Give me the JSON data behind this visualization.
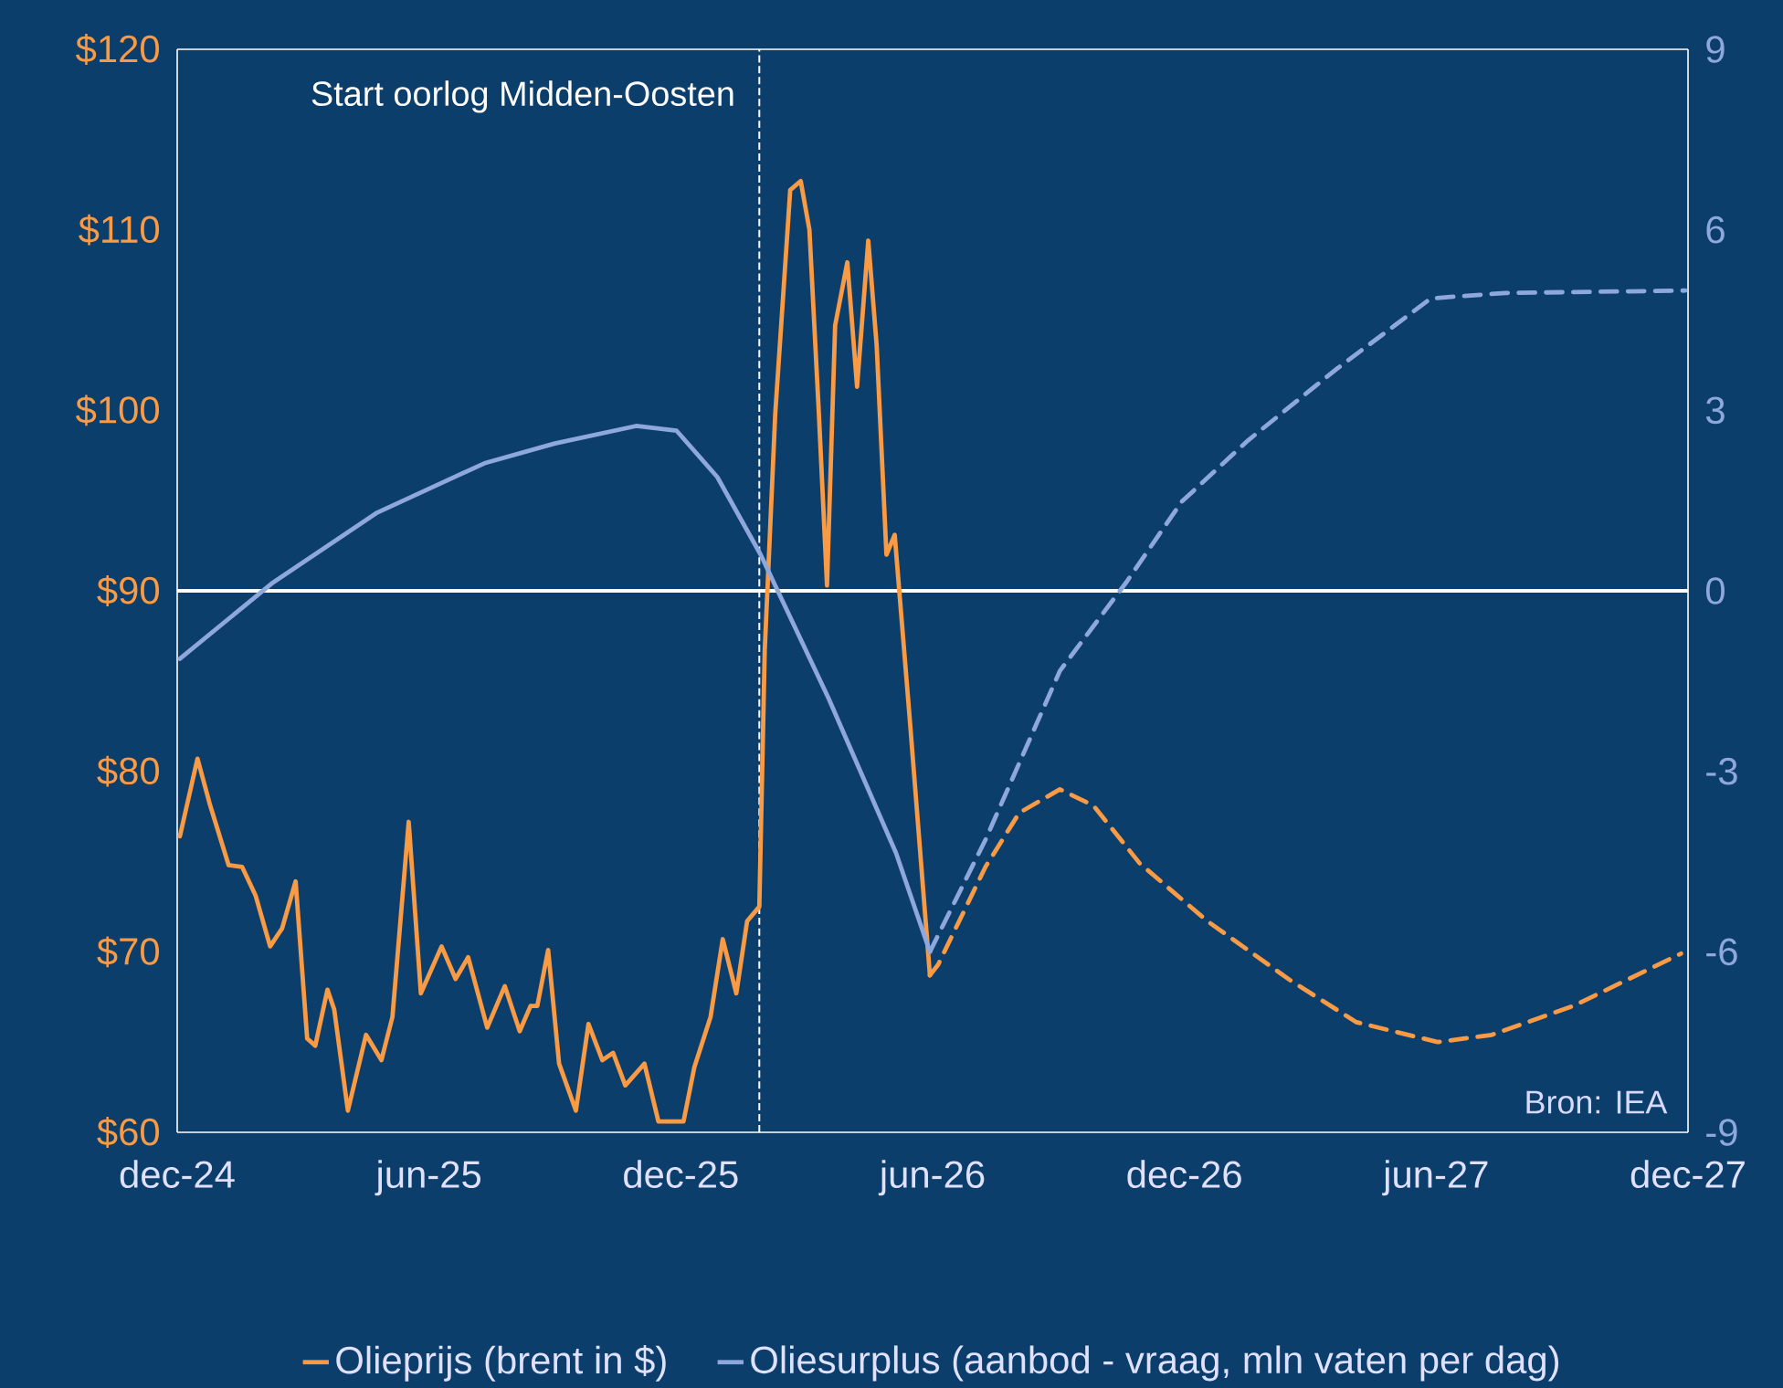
{
  "chart_data": {
    "type": "line",
    "legend": "bottom",
    "grid": false,
    "xlim": [
      "2024-12",
      "2027-12"
    ],
    "xticks": [
      {
        "value": "2024-12",
        "label": "dec-24"
      },
      {
        "value": "2025-06",
        "label": "jun-25"
      },
      {
        "value": "2025-12",
        "label": "dec-25"
      },
      {
        "value": "2026-06",
        "label": "jun-26"
      },
      {
        "value": "2026-12",
        "label": "dec-26"
      },
      {
        "value": "2027-06",
        "label": "jun-27"
      },
      {
        "value": "2027-12",
        "label": "dec-27"
      }
    ],
    "ylim": [
      60,
      120
    ],
    "yticks": [
      {
        "value": 60,
        "label": "$60"
      },
      {
        "value": 70,
        "label": "$70"
      },
      {
        "value": 80,
        "label": "$80"
      },
      {
        "value": 90,
        "label": "$90"
      },
      {
        "value": 100,
        "label": "$100"
      },
      {
        "value": 110,
        "label": "$110"
      },
      {
        "value": 120,
        "label": "$120"
      }
    ],
    "y2lim": [
      -9,
      9
    ],
    "y2ticks": [
      -9,
      -6,
      -3,
      0,
      3,
      6,
      9
    ],
    "series": [
      {
        "name": "Olieprijs (brent in $)",
        "color": "#f99a45",
        "line_style": "solid",
        "x": [
          "2024-12-03",
          "2024-12-16",
          "2024-12-25",
          "2025-01-08",
          "2025-01-18",
          "2025-01-28",
          "2025-02-07",
          "2025-02-15",
          "2025-02-24",
          "2025-03-04",
          "2025-03-10",
          "2025-03-19",
          "2025-03-24",
          "2025-04-03",
          "2025-04-16",
          "2025-04-27",
          "2025-05-05",
          "2025-05-17",
          "2025-05-26",
          "2025-06-10",
          "2025-06-20",
          "2025-06-29",
          "2025-07-13",
          "2025-07-26",
          "2025-08-06",
          "2025-08-14",
          "2025-08-19",
          "2025-08-27",
          "2025-09-04",
          "2025-09-16",
          "2025-09-25",
          "2025-10-05",
          "2025-10-13",
          "2025-10-22",
          "2025-11-05",
          "2025-11-15",
          "2025-12-03",
          "2025-12-11",
          "2025-12-23",
          "2026-01-01",
          "2026-01-11",
          "2026-01-19",
          "2026-01-28",
          "2026-02-01",
          "2026-02-08",
          "2026-02-18",
          "2026-02-25",
          "2026-03-03",
          "2026-03-10",
          "2026-03-16",
          "2026-03-22",
          "2026-03-31",
          "2026-04-07",
          "2026-04-15",
          "2026-04-21",
          "2026-04-28",
          "2026-05-04",
          "2026-05-15",
          "2026-05-30"
        ],
        "values": [
          76.4,
          80.7,
          78.2,
          74.8,
          74.7,
          73.1,
          70.3,
          71.3,
          73.9,
          65.2,
          64.8,
          67.9,
          66.8,
          61.2,
          65.4,
          64.0,
          66.4,
          77.2,
          67.7,
          70.3,
          68.5,
          69.7,
          65.8,
          68.1,
          65.6,
          67.0,
          67.0,
          70.1,
          63.8,
          61.2,
          66.0,
          64.0,
          64.4,
          62.6,
          63.8,
          60.6,
          60.6,
          63.6,
          66.4,
          70.7,
          67.7,
          71.7,
          72.5,
          86.7,
          99.8,
          112.2,
          112.7,
          110.0,
          99.8,
          90.3,
          104.7,
          108.2,
          101.3,
          109.4,
          103.6,
          92.0,
          93.1,
          83.0,
          68.7
        ]
      },
      {
        "color": "#f99a45",
        "line_style": "dashed",
        "x": [
          "2026-05-30",
          "2026-06-05",
          "2026-07-09",
          "2026-08-03",
          "2026-09-02",
          "2026-09-26",
          "2026-10-30",
          "2026-12-18",
          "2027-02-16",
          "2027-04-04",
          "2027-06-02",
          "2027-07-11",
          "2027-09-09",
          "2027-11-26"
        ],
        "values": [
          68.7,
          69.3,
          74.7,
          77.7,
          79.0,
          78.1,
          74.9,
          71.7,
          68.4,
          66.1,
          65.0,
          65.4,
          67.0,
          69.9
        ]
      },
      {
        "name": "Oliesurplus (aanbod - vraag, mln vaten per dag)",
        "color": "#8fa8dc",
        "line_style": "solid",
        "axis": "y2",
        "x": [
          "2024-12-03",
          "2025-02-08",
          "2025-04-24",
          "2025-07-11",
          "2025-09-01",
          "2025-10-30",
          "2025-11-28",
          "2025-12-28",
          "2026-01-29",
          "2026-03-17",
          "2026-05-05",
          "2026-05-30"
        ],
        "values": [
          -1.13,
          0.12,
          1.3,
          2.12,
          2.45,
          2.74,
          2.66,
          1.89,
          0.6,
          -1.78,
          -4.36,
          -6.0
        ]
      },
      {
        "color": "#8fa8dc",
        "line_style": "dashed",
        "axis": "y2",
        "x": [
          "2026-05-30",
          "2026-07-09",
          "2026-09-02",
          "2026-10-20",
          "2026-11-29",
          "2027-01-17",
          "2027-03-20",
          "2027-05-28",
          "2027-07-21",
          "2027-11-29"
        ],
        "values": [
          -6.0,
          -4.14,
          -1.33,
          0.14,
          1.48,
          2.5,
          3.68,
          4.86,
          4.95,
          4.99
        ]
      }
    ],
    "ref_lines": [
      {
        "axis": "x",
        "value": "2026-01-28",
        "label": "Start oorlog Midden-Oosten",
        "color": "#ffffff",
        "line_style": "dashed"
      },
      {
        "axis": "y",
        "value": 90,
        "color": "#ffffff",
        "line_style": "solid"
      }
    ],
    "annotations": [
      "Bron: IEA"
    ]
  }
}
